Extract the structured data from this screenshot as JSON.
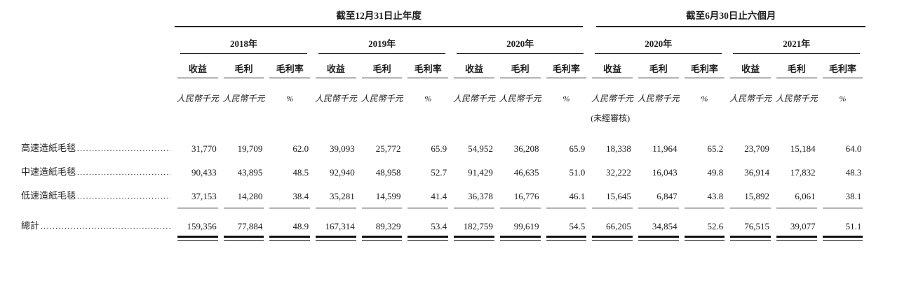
{
  "colors": {
    "text": "#1c1c1c",
    "rule": "#222222",
    "background": "#ffffff"
  },
  "table": {
    "groups": [
      {
        "title": "截至12月31日止年度"
      },
      {
        "title": "截至6月30日止六個月"
      }
    ],
    "years": [
      "2018年",
      "2019年",
      "2020年",
      "2020年",
      "2021年"
    ],
    "metrics": [
      "收益",
      "毛利",
      "毛利率"
    ],
    "units": [
      "人民幣千元",
      "人民幣千元",
      "%"
    ],
    "notes": {
      "unaudited": "(未經審核)"
    },
    "rows": [
      {
        "label": "高速造紙毛毯",
        "values": [
          "31,770",
          "19,709",
          "62.0",
          "39,093",
          "25,772",
          "65.9",
          "54,952",
          "36,208",
          "65.9",
          "18,338",
          "11,964",
          "65.2",
          "23,709",
          "15,184",
          "64.0"
        ]
      },
      {
        "label": "中速造紙毛毯",
        "values": [
          "90,433",
          "43,895",
          "48.5",
          "92,940",
          "48,958",
          "52.7",
          "91,429",
          "46,635",
          "51.0",
          "32,222",
          "16,043",
          "49.8",
          "36,914",
          "17,832",
          "48.3"
        ]
      },
      {
        "label": "低速造紙毛毯",
        "values": [
          "37,153",
          "14,280",
          "38.4",
          "35,281",
          "14,599",
          "41.4",
          "36,378",
          "16,776",
          "46.1",
          "15,645",
          "6,847",
          "43.8",
          "15,892",
          "6,061",
          "38.1"
        ]
      }
    ],
    "total_row": {
      "label": "總計",
      "values": [
        "159,356",
        "77,884",
        "48.9",
        "167,314",
        "89,329",
        "53.4",
        "182,759",
        "99,619",
        "54.5",
        "66,205",
        "34,854",
        "52.6",
        "76,515",
        "39,077",
        "51.1"
      ]
    }
  }
}
